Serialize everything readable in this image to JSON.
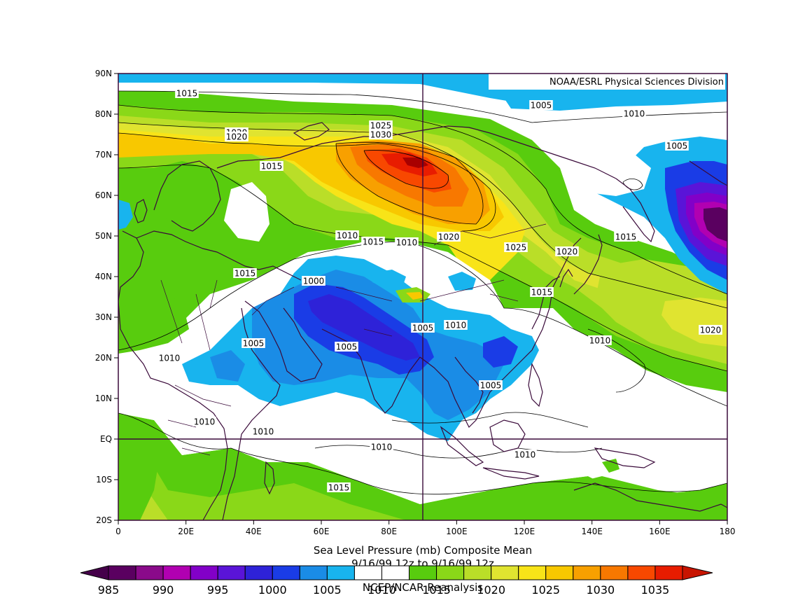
{
  "credit": "NOAA/ESRL Physical Sciences Division",
  "caption": {
    "line1": "Sea Level Pressure (mb)   Composite Mean",
    "line2": "9/16/99 12z  to 9/16/99 12z",
    "line3": "NCEP/NCAR Reanalysis"
  },
  "lat_labels": [
    "90N",
    "80N",
    "70N",
    "60N",
    "50N",
    "40N",
    "30N",
    "20N",
    "10N",
    "EQ",
    "10S",
    "20S"
  ],
  "lon_labels": [
    "0",
    "20E",
    "40E",
    "60E",
    "80E",
    "100E",
    "120E",
    "140E",
    "160E",
    "180"
  ],
  "colorbar": {
    "ticks": [
      "985",
      "990",
      "995",
      "1000",
      "1005",
      "1010",
      "1015",
      "1020",
      "1025",
      "1030",
      "1035"
    ],
    "colors": [
      "#5a0060",
      "#8a0a8a",
      "#b100b1",
      "#8200c8",
      "#5a14d8",
      "#2e22d8",
      "#1a3ce6",
      "#1a8ce6",
      "#18b4ee",
      "#ffffff",
      "#ffffff",
      "#58cc0e",
      "#8ad818",
      "#bade28",
      "#e0e430",
      "#f8e418",
      "#f8c800",
      "#f8a000",
      "#f87800",
      "#f84800",
      "#e81c00"
    ]
  },
  "contour_labels": [
    {
      "text": "1015"
    },
    {
      "text": "1020"
    },
    {
      "text": "1020"
    },
    {
      "text": "1025"
    },
    {
      "text": "1030"
    },
    {
      "text": "1005"
    },
    {
      "text": "1010"
    },
    {
      "text": "1005"
    },
    {
      "text": "1015"
    },
    {
      "text": "1010"
    },
    {
      "text": "1015"
    },
    {
      "text": "1010"
    },
    {
      "text": "1020"
    },
    {
      "text": "1025"
    },
    {
      "text": "1020"
    },
    {
      "text": "1015"
    },
    {
      "text": "1015"
    },
    {
      "text": "1015"
    },
    {
      "text": "1000"
    },
    {
      "text": "1005"
    },
    {
      "text": "1010"
    },
    {
      "text": "1005"
    },
    {
      "text": "1005"
    },
    {
      "text": "1010"
    },
    {
      "text": "1020"
    },
    {
      "text": "1010"
    },
    {
      "text": "1010"
    },
    {
      "text": "1010"
    },
    {
      "text": "1010"
    },
    {
      "text": "1010"
    },
    {
      "text": "1015"
    },
    {
      "text": "1005"
    }
  ]
}
